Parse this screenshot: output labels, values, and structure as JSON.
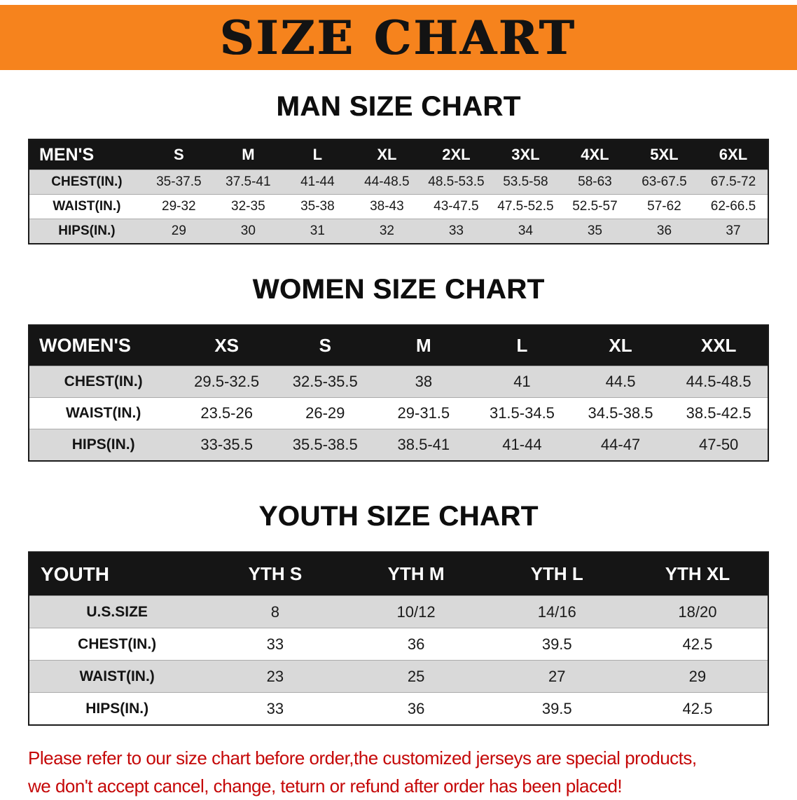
{
  "banner": {
    "title": "SIZE CHART"
  },
  "men": {
    "heading": "MAN SIZE CHART",
    "table": {
      "header": [
        "MEN'S",
        "S",
        "M",
        "L",
        "XL",
        "2XL",
        "3XL",
        "4XL",
        "5XL",
        "6XL"
      ],
      "rows": [
        [
          "CHEST(IN.)",
          "35-37.5",
          "37.5-41",
          "41-44",
          "44-48.5",
          "48.5-53.5",
          "53.5-58",
          "58-63",
          "63-67.5",
          "67.5-72"
        ],
        [
          "WAIST(IN.)",
          "29-32",
          "32-35",
          "35-38",
          "38-43",
          "43-47.5",
          "47.5-52.5",
          "52.5-57",
          "57-62",
          "62-66.5"
        ],
        [
          "HIPS(IN.)",
          "29",
          "30",
          "31",
          "32",
          "33",
          "34",
          "35",
          "36",
          "37"
        ]
      ]
    }
  },
  "women": {
    "heading": "WOMEN SIZE CHART",
    "table": {
      "header": [
        "WOMEN'S",
        "XS",
        "S",
        "M",
        "L",
        "XL",
        "XXL"
      ],
      "rows": [
        [
          "CHEST(IN.)",
          "29.5-32.5",
          "32.5-35.5",
          "38",
          "41",
          "44.5",
          "44.5-48.5"
        ],
        [
          "WAIST(IN.)",
          "23.5-26",
          "26-29",
          "29-31.5",
          "31.5-34.5",
          "34.5-38.5",
          "38.5-42.5"
        ],
        [
          "HIPS(IN.)",
          "33-35.5",
          "35.5-38.5",
          "38.5-41",
          "41-44",
          "44-47",
          "47-50"
        ]
      ]
    }
  },
  "youth": {
    "heading": "YOUTH SIZE CHART",
    "table": {
      "header": [
        "YOUTH",
        "YTH S",
        "YTH M",
        "YTH L",
        "YTH XL"
      ],
      "rows": [
        [
          "U.S.SIZE",
          "8",
          "10/12",
          "14/16",
          "18/20"
        ],
        [
          "CHEST(IN.)",
          "33",
          "36",
          "39.5",
          "42.5"
        ],
        [
          "WAIST(IN.)",
          "23",
          "25",
          "27",
          "29"
        ],
        [
          "HIPS(IN.)",
          "33",
          "36",
          "39.5",
          "42.5"
        ]
      ]
    }
  },
  "disclaimer": {
    "line1": "Please refer to our size chart before order,the customized jerseys are special products,",
    "line2": "we don't accept cancel, change, teturn or refund after order has been placed!"
  },
  "colors": {
    "banner_bg": "#f6831d",
    "header_bg": "#151515",
    "row_alt": "#d9d9d9",
    "disclaimer_red": "#c50808"
  }
}
